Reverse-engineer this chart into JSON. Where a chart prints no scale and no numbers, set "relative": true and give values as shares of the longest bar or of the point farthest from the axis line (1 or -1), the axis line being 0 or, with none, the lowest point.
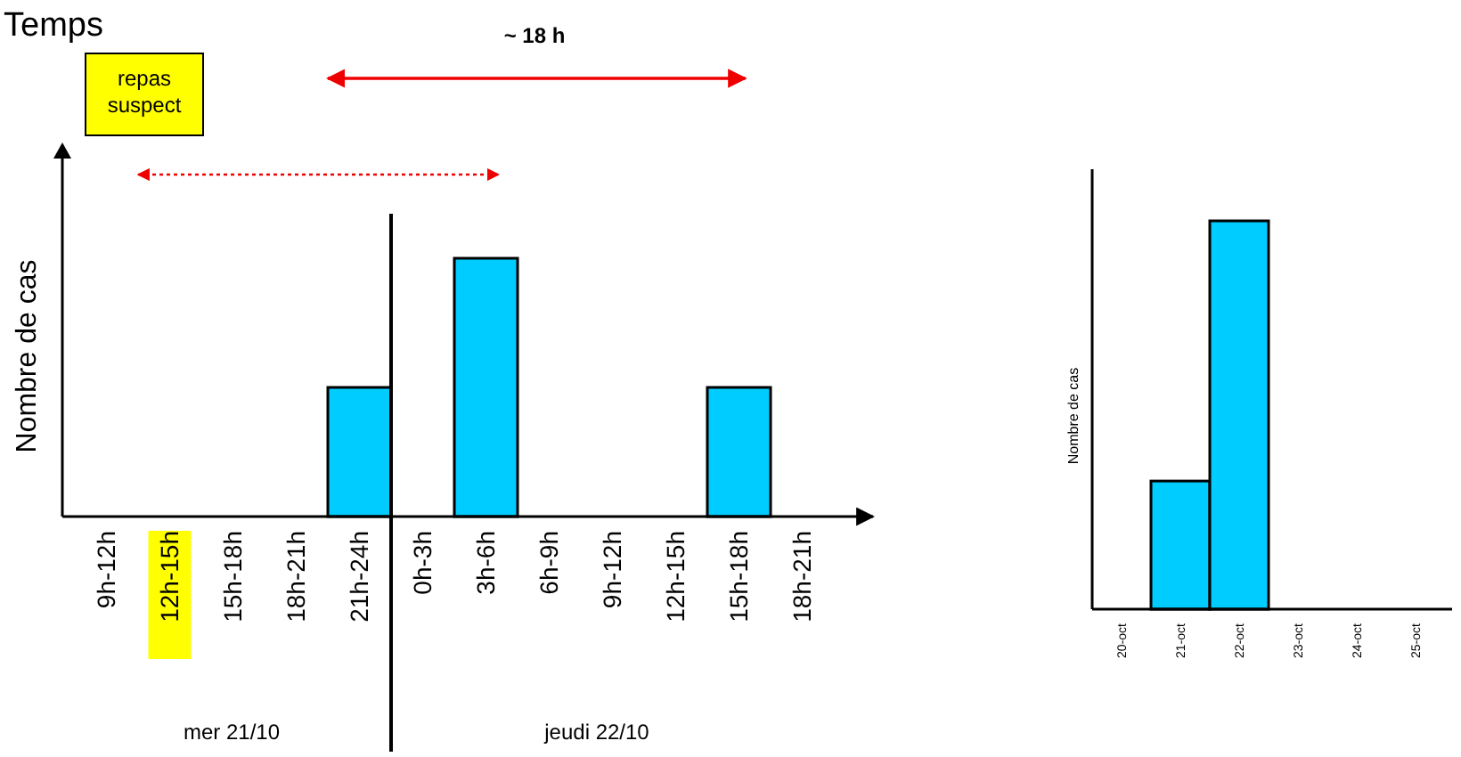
{
  "chart_data": [
    {
      "type": "bar",
      "title": "Temps",
      "ylabel": "Nombre de cas",
      "relative": true,
      "color": "#00ccff",
      "categories": [
        "9h-12h",
        "12h-15h",
        "15h-18h",
        "18h-21h",
        "21h-24h",
        "0h-3h",
        "3h-6h",
        "6h-9h",
        "9h-12h",
        "12h-15h",
        "15h-18h",
        "18h-21h"
      ],
      "values": [
        0,
        0,
        0,
        0,
        0.5,
        0,
        1,
        0,
        0,
        0,
        0.5,
        0
      ],
      "annotations": [
        "repas suspect",
        "~ 18 h",
        "mer 21/10",
        "jeudi 22/10"
      ]
    },
    {
      "type": "bar",
      "ylabel": "Nombre de cas",
      "relative": true,
      "color": "#00ccff",
      "categories": [
        "20-oct",
        "21-oct",
        "22-oct",
        "23-oct",
        "24-oct",
        "25-oct"
      ],
      "values": [
        0,
        0.33,
        1,
        0,
        0,
        0
      ]
    }
  ]
}
